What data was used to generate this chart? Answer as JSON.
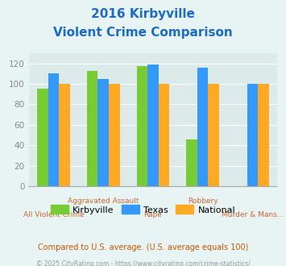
{
  "title_line1": "2016 Kirbyville",
  "title_line2": "Violent Crime Comparison",
  "categories": [
    "All Violent Crime",
    "Aggravated Assault",
    "Rape",
    "Robbery",
    "Murder & Mans..."
  ],
  "series": {
    "Kirbyville": [
      95,
      113,
      117,
      46,
      0
    ],
    "Texas": [
      110,
      105,
      119,
      116,
      100
    ],
    "National": [
      100,
      100,
      100,
      100,
      100
    ]
  },
  "colors": {
    "Kirbyville": "#77cc33",
    "Texas": "#3399ff",
    "National": "#ffaa22"
  },
  "ylim": [
    0,
    130
  ],
  "yticks": [
    0,
    20,
    40,
    60,
    80,
    100,
    120
  ],
  "background_color": "#e8f4f4",
  "plot_bg": "#ddeaea",
  "title_color": "#1a6bcc",
  "xlabel_color": "#cc6633",
  "ylabel_color": "#888888",
  "legend_fontsize": 8,
  "footer_text": "Compared to U.S. average. (U.S. average equals 100)",
  "copyright_text": "© 2025 CityRating.com - https://www.cityrating.com/crime-statistics/",
  "footer_color": "#cc5500",
  "copyright_color": "#999999",
  "bar_width": 0.22
}
